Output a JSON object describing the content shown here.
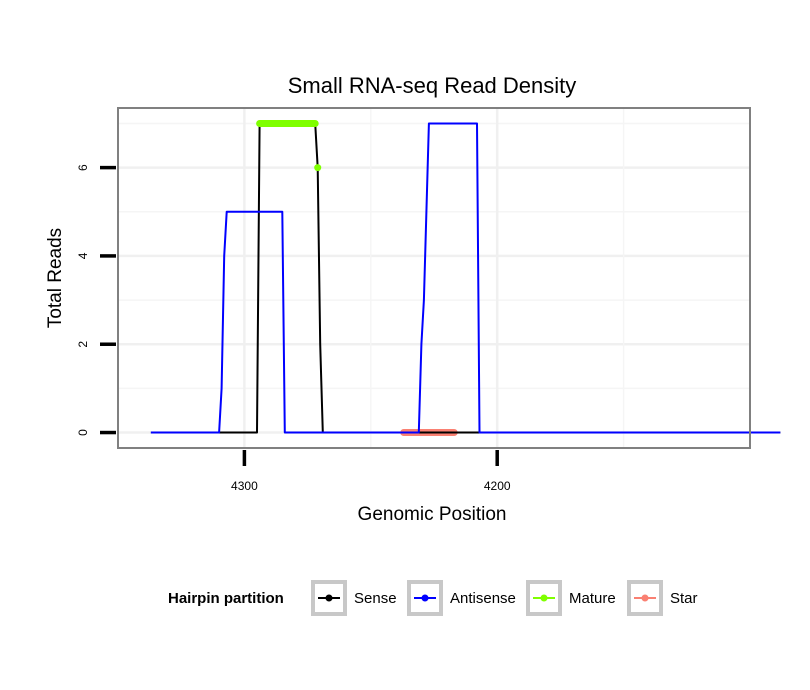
{
  "chart_data": {
    "type": "line",
    "title": "Small RNA-seq Read Density",
    "xlabel": "Genomic Position",
    "ylabel": "Total Reads",
    "xlim": [
      4350,
      4100
    ],
    "ylim": [
      -0.35,
      7.35
    ],
    "x_reversed": true,
    "x_ticks": [
      4300,
      4200
    ],
    "y_ticks": [
      0,
      2,
      4,
      6
    ],
    "grid": true,
    "legend": {
      "title": "Hairpin partition",
      "position": "bottom",
      "entries": [
        "Sense",
        "Antisense",
        "Mature",
        "Star"
      ]
    },
    "series": [
      {
        "name": "Sense",
        "color": "#000000",
        "points": [
          [
            4337,
            0
          ],
          [
            4295,
            0
          ],
          [
            4294,
            7
          ],
          [
            4272,
            7
          ],
          [
            4271,
            6
          ],
          [
            4270,
            2
          ],
          [
            4269,
            0
          ],
          [
            4088,
            0
          ]
        ]
      },
      {
        "name": "Antisense",
        "color": "#0000ff",
        "points": [
          [
            4337,
            0
          ],
          [
            4310,
            0
          ],
          [
            4309,
            1
          ],
          [
            4308,
            4
          ],
          [
            4307,
            5
          ],
          [
            4285,
            5
          ],
          [
            4284,
            0
          ],
          [
            4231,
            0
          ],
          [
            4230,
            2
          ],
          [
            4229,
            3
          ],
          [
            4227,
            7
          ],
          [
            4208,
            7
          ],
          [
            4207,
            0
          ],
          [
            4088,
            0
          ]
        ]
      },
      {
        "name": "Mature",
        "color": "#7fff00",
        "points": [
          [
            4294,
            7
          ],
          [
            4272,
            7
          ]
        ],
        "extra_points": [
          [
            4271,
            6
          ]
        ]
      },
      {
        "name": "Star",
        "color": "#fa8072",
        "points": [
          [
            4237,
            0
          ],
          [
            4217,
            0
          ]
        ]
      }
    ]
  }
}
